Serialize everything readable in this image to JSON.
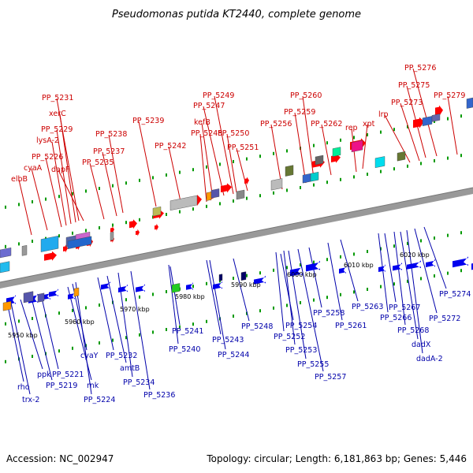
{
  "title": "Pseudomonas putida KT2440, complete genome",
  "footer": {
    "accession": "Accession: NC_002947",
    "summary": "Topology: circular; Length: 6,181,863 bp; Genes: 5,446"
  },
  "colors": {
    "forward_labels": "#cc0000",
    "reverse_labels": "#0000aa",
    "forward_genes": "#ff0000",
    "reverse_genes": "#0000ee",
    "tick_green": "#009900",
    "axis": "#999999"
  },
  "axis_ticks": [
    "5950 kbp",
    "5960 kbp",
    "5970 kbp",
    "5980 kbp",
    "5990 kbp",
    "6000 kbp",
    "6010 kbp",
    "6020 kbp"
  ],
  "forward_labels": [
    "elbB",
    "cyaA",
    "PP_5226",
    "lysA-2",
    "PP_5229",
    "xerC",
    "PP_5231",
    "dapF",
    "PP_5235",
    "PP_5237",
    "PP_5238",
    "PP_5239",
    "PP_5242",
    "PP_5245",
    "kefB",
    "PP_5247",
    "PP_5249",
    "PP_5250",
    "PP_5251",
    "PP_5256",
    "PP_5259",
    "PP_5260",
    "PP_5262",
    "rep",
    "xpt",
    "lrp",
    "PP_5273",
    "PP_5275",
    "PP_5276",
    "PP_5279"
  ],
  "reverse_labels": [
    "rho",
    "trx-2",
    "ppk",
    "PP_5219",
    "PP_5221",
    "rnk",
    "cyaY",
    "PP_5224",
    "PP_5232",
    "amtB",
    "PP_5234",
    "PP_5236",
    "PP_5241",
    "PP_5240",
    "PP_5243",
    "PP_5244",
    "PP_5248",
    "PP_5254",
    "PP_5252",
    "PP_5253",
    "PP_5255",
    "PP_5258",
    "PP_5257",
    "PP_5261",
    "PP_5263",
    "PP_5267",
    "PP_5266",
    "PP_5268",
    "dadX",
    "dadA-2",
    "PP_5272",
    "PP_5274"
  ]
}
